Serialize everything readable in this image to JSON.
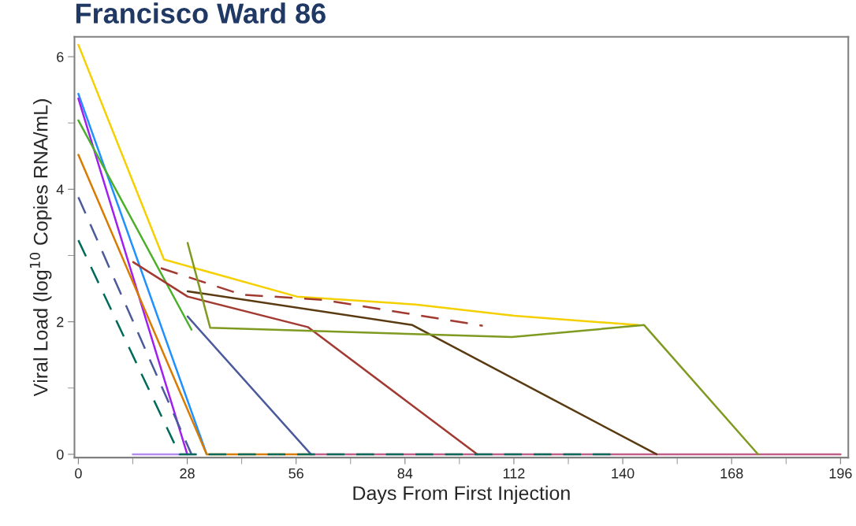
{
  "chart_data": {
    "type": "line",
    "title": "Francisco Ward 86",
    "xlabel": "Days From First Injection",
    "ylabel": "Viral Load (log$^{10}$ Copies RNA/mL)",
    "xlim": [
      -1,
      198
    ],
    "ylim": [
      -0.05,
      6.3
    ],
    "xticks": [
      0,
      28,
      56,
      84,
      112,
      140,
      168,
      196
    ],
    "yticks": [
      0,
      2,
      4,
      6
    ],
    "grid": false,
    "legend": false,
    "series": [
      {
        "color": "#c0608a",
        "x": [
          60,
          196
        ],
        "values": [
          0,
          0
        ]
      },
      {
        "color": "#b48cf0",
        "x": [
          14,
          30
        ],
        "values": [
          0,
          0
        ]
      },
      {
        "color": "#f5d000",
        "x": [
          0,
          22,
          56.2,
          86.7,
          112.1,
          144
        ],
        "values": [
          6.18,
          2.94,
          2.38,
          2.26,
          2.09,
          1.95
        ]
      },
      {
        "color": "#1e90ff",
        "x": [
          0,
          33
        ],
        "values": [
          5.44,
          0
        ]
      },
      {
        "color": "#a020f0",
        "x": [
          0,
          28
        ],
        "values": [
          5.37,
          0
        ]
      },
      {
        "color": "#4caf2a",
        "x": [
          0,
          29.1
        ],
        "values": [
          5.04,
          1.88
        ]
      },
      {
        "color": "#d97b00",
        "x": [
          0,
          33,
          60
        ],
        "values": [
          4.52,
          0,
          0
        ]
      },
      {
        "color": "#4b5a9a",
        "line_style": "dashed",
        "x": [
          0,
          29.1
        ],
        "values": [
          3.88,
          0
        ]
      },
      {
        "color": "#4b5a9a",
        "x": [
          28.1,
          59.8
        ],
        "values": [
          2.08,
          0
        ]
      },
      {
        "color": "#a33a32",
        "x": [
          14.1,
          28.1,
          59,
          102.6
        ],
        "values": [
          2.9,
          2.38,
          1.92,
          0
        ]
      },
      {
        "color": "#a33a32",
        "line_style": "dashed",
        "x": [
          21.2,
          42,
          63,
          104
        ],
        "values": [
          2.81,
          2.41,
          2.33,
          1.94
        ]
      },
      {
        "color": "#5a3a10",
        "x": [
          28.1,
          85.9,
          148.7
        ],
        "values": [
          2.46,
          1.95,
          0
        ]
      },
      {
        "color": "#7f9a20",
        "x": [
          28.1,
          33.9,
          111.5,
          145.5,
          174.8
        ],
        "values": [
          3.19,
          1.91,
          1.77,
          1.95,
          0
        ]
      },
      {
        "color": "#006b5a",
        "line_style": "dashed",
        "x": [
          0,
          26,
          137
        ],
        "values": [
          3.23,
          0,
          0
        ]
      }
    ]
  }
}
